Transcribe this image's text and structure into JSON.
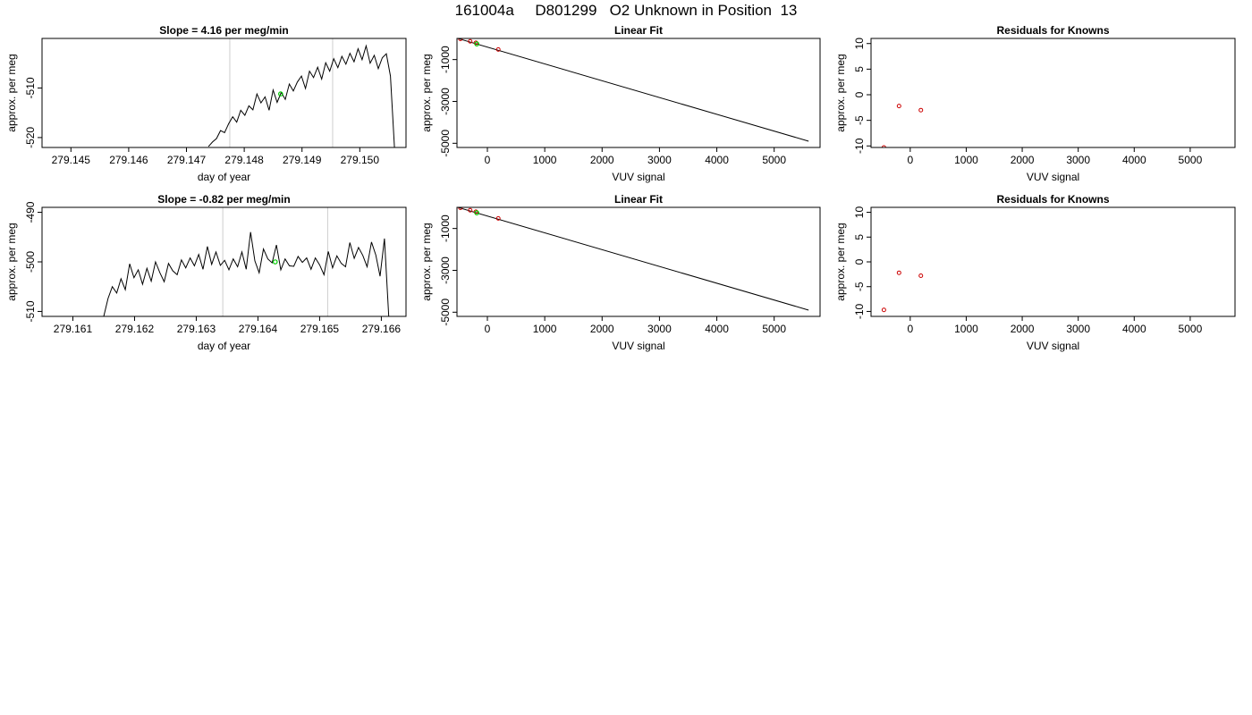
{
  "figure": {
    "title": "161004a     D801299   O2 Unknown in Position  13"
  },
  "chart_data": [
    {
      "type": "line",
      "title": "Slope =  4.16  per meg/min",
      "xlabel": "day of year",
      "ylabel": "approx. per meg",
      "xlim": [
        279.1445,
        279.1508
      ],
      "ylim": [
        -522,
        -500
      ],
      "xticks": [
        279.145,
        279.146,
        279.147,
        279.148,
        279.149,
        279.15
      ],
      "xtick_labels": [
        "279.145",
        "279.146",
        "279.147",
        "279.148",
        "279.149",
        "279.150"
      ],
      "yticks": [
        -520,
        -510
      ],
      "ytick_labels": [
        "-520",
        "-510"
      ],
      "vlines": [
        279.14775,
        279.14953
      ],
      "marker": {
        "x": 279.14863,
        "y": -511.2,
        "color": "#00cc00"
      },
      "line_color": "#000000",
      "vline_color": "#cccccc",
      "x": [
        279.14738,
        279.14745,
        279.14752,
        279.14759,
        279.14766,
        279.14773,
        279.1478,
        279.14787,
        279.14794,
        279.14801,
        279.14808,
        279.14815,
        279.14822,
        279.14829,
        279.14836,
        279.14843,
        279.1485,
        279.14857,
        279.14864,
        279.14871,
        279.14878,
        279.14885,
        279.14892,
        279.14899,
        279.14906,
        279.14913,
        279.1492,
        279.14927,
        279.14934,
        279.14941,
        279.14948,
        279.14955,
        279.14962,
        279.14969,
        279.14976,
        279.14983,
        279.1499,
        279.14997,
        279.15004,
        279.15011,
        279.15018,
        279.15025,
        279.15032,
        279.15039,
        279.15046,
        279.15053,
        279.1506
      ],
      "y": [
        -521.8,
        -520.9,
        -520.2,
        -518.6,
        -519.0,
        -517.2,
        -515.8,
        -516.9,
        -514.5,
        -515.5,
        -513.6,
        -514.4,
        -511.2,
        -513.0,
        -511.8,
        -514.5,
        -510.4,
        -512.9,
        -510.9,
        -512.3,
        -509.2,
        -510.6,
        -508.8,
        -507.6,
        -510.1,
        -506.6,
        -507.9,
        -505.8,
        -508.2,
        -504.9,
        -506.6,
        -504.1,
        -505.9,
        -503.6,
        -505.2,
        -503.0,
        -504.7,
        -502.1,
        -504.3,
        -501.5,
        -505.0,
        -503.4,
        -506.1,
        -503.9,
        -503.1,
        -507.6,
        -522.0
      ]
    },
    {
      "type": "scatter",
      "title": "Linear Fit",
      "xlabel": "VUV signal",
      "ylabel": "approx. per meg",
      "xlim": [
        -530,
        5800
      ],
      "ylim": [
        -5200,
        10
      ],
      "xticks": [
        0,
        1000,
        2000,
        3000,
        4000,
        5000
      ],
      "xtick_labels": [
        "0",
        "1000",
        "2000",
        "3000",
        "4000",
        "5000"
      ],
      "yticks": [
        -5000,
        -3000,
        -1000
      ],
      "ytick_labels": [
        "-5000",
        "-3000",
        "-1000"
      ],
      "fit_line": {
        "x": [
          -530,
          5600
        ],
        "y": [
          20,
          -4900
        ]
      },
      "points": {
        "x": [
          -470,
          -300,
          -200,
          190
        ],
        "y": [
          -10,
          -130,
          -200,
          -520
        ],
        "color": "#cc0000"
      },
      "unknown": {
        "x": -185,
        "y": -250,
        "color": "#00cc00"
      }
    },
    {
      "type": "scatter",
      "title": "Residuals for Knowns",
      "xlabel": "VUV signal",
      "ylabel": "approx. per meg",
      "xlim": [
        -700,
        5800
      ],
      "ylim": [
        -10.3,
        11
      ],
      "xticks": [
        0,
        1000,
        2000,
        3000,
        4000,
        5000
      ],
      "xtick_labels": [
        "0",
        "1000",
        "2000",
        "3000",
        "4000",
        "5000"
      ],
      "yticks": [
        -10,
        -5,
        0,
        5,
        10
      ],
      "ytick_labels": [
        "-10",
        "-5",
        "0",
        "5",
        "10"
      ],
      "points": {
        "x": [
          -470,
          -200,
          190
        ],
        "y": [
          -10.3,
          -2.2,
          -3.0
        ],
        "color": "#cc0000"
      }
    },
    {
      "type": "line",
      "title": "Slope =  -0.82  per meg/min",
      "xlabel": "day of year",
      "ylabel": "approx. per meg",
      "xlim": [
        279.1605,
        279.1664
      ],
      "ylim": [
        -511,
        -489
      ],
      "xticks": [
        279.161,
        279.162,
        279.163,
        279.164,
        279.165,
        279.166
      ],
      "xtick_labels": [
        "279.161",
        "279.162",
        "279.163",
        "279.164",
        "279.165",
        "279.166"
      ],
      "yticks": [
        -510,
        -500,
        -490
      ],
      "ytick_labels": [
        "-510",
        "-500",
        "-490"
      ],
      "vlines": [
        279.16343,
        279.16513
      ],
      "marker": {
        "x": 279.16428,
        "y": -500.0,
        "color": "#00cc00"
      },
      "line_color": "#000000",
      "vline_color": "#cccccc",
      "x": [
        279.1615,
        279.16157,
        279.16164,
        279.16171,
        279.16178,
        279.16185,
        279.16192,
        279.16199,
        279.16206,
        279.16213,
        279.1622,
        279.16227,
        279.16234,
        279.16241,
        279.16248,
        279.16255,
        279.16262,
        279.16269,
        279.16276,
        279.16283,
        279.1629,
        279.16297,
        279.16304,
        279.16311,
        279.16318,
        279.16325,
        279.16332,
        279.16339,
        279.16346,
        279.16353,
        279.1636,
        279.16367,
        279.16374,
        279.16381,
        279.16388,
        279.16395,
        279.16402,
        279.16409,
        279.16416,
        279.16423,
        279.1643,
        279.16437,
        279.16444,
        279.16451,
        279.16458,
        279.16465,
        279.16472,
        279.16479,
        279.16486,
        279.16493,
        279.165,
        279.16507,
        279.16514,
        279.16521,
        279.16528,
        279.16535,
        279.16542,
        279.16549,
        279.16556,
        279.16563,
        279.1657,
        279.16577,
        279.16584,
        279.16591,
        279.16598,
        279.16605,
        279.16612
      ],
      "y": [
        -511.0,
        -507.4,
        -505.0,
        -506.3,
        -503.4,
        -505.6,
        -500.4,
        -503.2,
        -501.6,
        -504.5,
        -501.3,
        -503.9,
        -500.0,
        -502.2,
        -504.0,
        -500.3,
        -501.8,
        -502.6,
        -499.6,
        -501.2,
        -499.2,
        -500.8,
        -498.5,
        -501.5,
        -496.9,
        -500.5,
        -498.0,
        -500.7,
        -499.7,
        -501.6,
        -499.4,
        -501.0,
        -498.0,
        -501.5,
        -494.0,
        -499.8,
        -502.2,
        -497.4,
        -499.4,
        -500.2,
        -496.6,
        -501.6,
        -499.4,
        -500.8,
        -500.9,
        -498.9,
        -500.1,
        -499.2,
        -501.5,
        -499.2,
        -500.6,
        -502.6,
        -497.9,
        -501.2,
        -498.8,
        -500.3,
        -501.0,
        -496.1,
        -499.3,
        -497.1,
        -498.7,
        -501.0,
        -496.0,
        -498.6,
        -502.9,
        -495.3,
        -511.0
      ]
    },
    {
      "type": "scatter",
      "title": "Linear Fit",
      "xlabel": "VUV signal",
      "ylabel": "approx. per meg",
      "xlim": [
        -530,
        5800
      ],
      "ylim": [
        -5200,
        10
      ],
      "xticks": [
        0,
        1000,
        2000,
        3000,
        4000,
        5000
      ],
      "xtick_labels": [
        "0",
        "1000",
        "2000",
        "3000",
        "4000",
        "5000"
      ],
      "yticks": [
        -5000,
        -3000,
        -1000
      ],
      "ytick_labels": [
        "-5000",
        "-3000",
        "-1000"
      ],
      "fit_line": {
        "x": [
          -530,
          5600
        ],
        "y": [
          20,
          -4900
        ]
      },
      "points": {
        "x": [
          -470,
          -300,
          -200,
          190
        ],
        "y": [
          -10,
          -130,
          -200,
          -520
        ],
        "color": "#cc0000"
      },
      "unknown": {
        "x": -185,
        "y": -250,
        "color": "#00cc00"
      }
    },
    {
      "type": "scatter",
      "title": "Residuals for Knowns",
      "xlabel": "VUV signal",
      "ylabel": "approx. per meg",
      "xlim": [
        -700,
        5800
      ],
      "ylim": [
        -11,
        11
      ],
      "xticks": [
        0,
        1000,
        2000,
        3000,
        4000,
        5000
      ],
      "xtick_labels": [
        "0",
        "1000",
        "2000",
        "3000",
        "4000",
        "5000"
      ],
      "yticks": [
        -10,
        -5,
        0,
        5,
        10
      ],
      "ytick_labels": [
        "-10",
        "-5",
        "0",
        "5",
        "10"
      ],
      "points": {
        "x": [
          -470,
          -200,
          190
        ],
        "y": [
          -9.7,
          -2.2,
          -2.8
        ],
        "color": "#cc0000"
      }
    }
  ]
}
